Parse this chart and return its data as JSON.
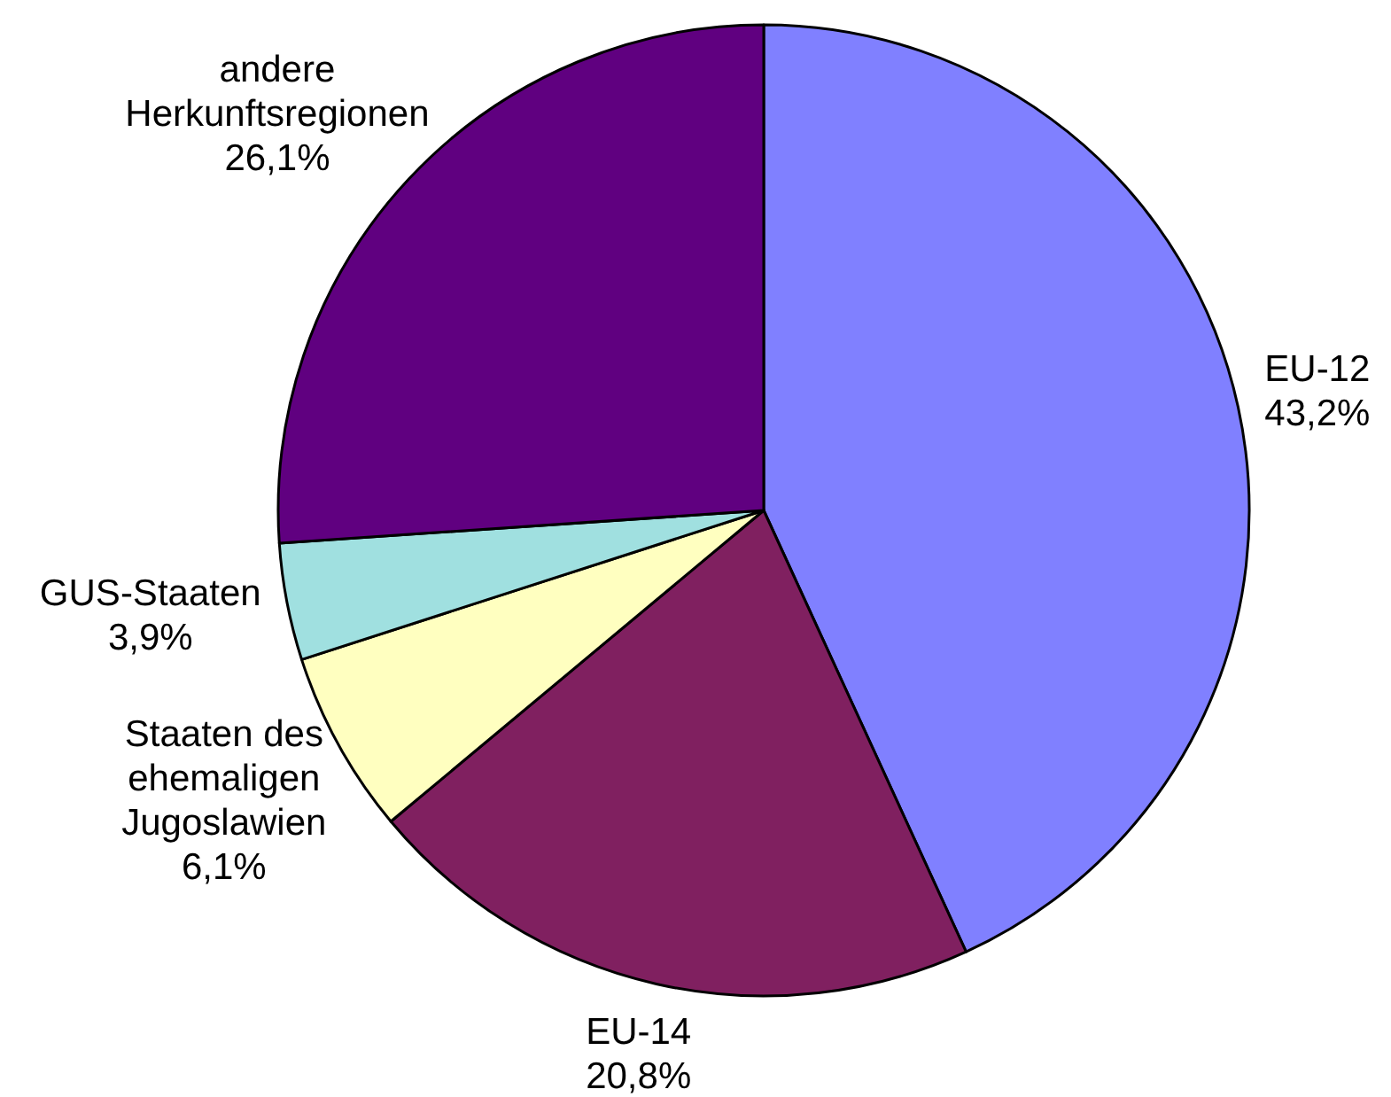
{
  "chart_data": {
    "type": "pie",
    "categories": [
      "EU-12",
      "EU-14",
      "Staaten des ehemaligen Jugoslawien",
      "GUS-Staaten",
      "andere Herkunftsregionen"
    ],
    "values": [
      43.2,
      20.8,
      6.1,
      3.9,
      26.1
    ],
    "colors": [
      "#8080ff",
      "#802060",
      "#ffffc0",
      "#a0e0e0",
      "#600080"
    ],
    "value_labels": [
      "43,2%",
      "20,8%",
      "6,1%",
      "3,9%",
      "26,1%"
    ]
  }
}
